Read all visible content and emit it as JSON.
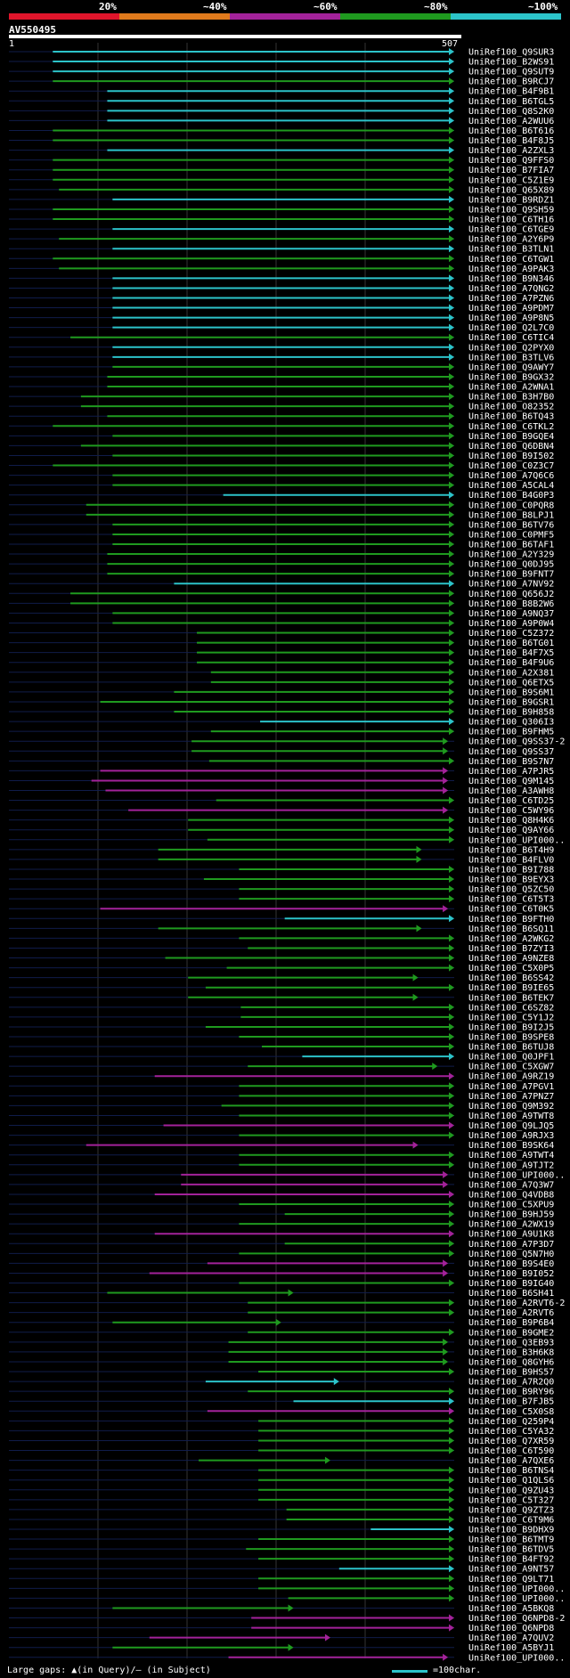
{
  "header": {
    "pct_labels": [
      "20%",
      "~40%",
      "~60%",
      "~80%",
      "~100%"
    ],
    "pct_colors": [
      "#e0152b",
      "#e07a1c",
      "#a3229a",
      "#1f9a1f",
      "#2cc3c9"
    ],
    "query_name": "AV550495",
    "ruler_start": "1",
    "ruler_end": "507"
  },
  "legend": {
    "gaps_text": "Large gaps: ▲(in Query)/– (in Subject)",
    "scale_text": "=100char."
  },
  "chart_data": {
    "type": "alignment-hits",
    "query_length": 507,
    "identity_colors": {
      "~80%": "#1f9a1f",
      "~100%": "#2cc3c9",
      "~60%": "#a3229a",
      "~40%": "#e07a1c",
      "20%": "#e0152b"
    },
    "hits": [
      {
        "id": "UniRef100_Q9SUR3",
        "start": 50,
        "end": 507,
        "cls": "~100%"
      },
      {
        "id": "UniRef100_B2WS91",
        "start": 50,
        "end": 507,
        "cls": "~100%"
      },
      {
        "id": "UniRef100_Q9SUT9",
        "start": 50,
        "end": 507,
        "cls": "~100%"
      },
      {
        "id": "UniRef100_B9RCJ7",
        "start": 50,
        "end": 507,
        "cls": "~80%"
      },
      {
        "id": "UniRef100_B4F9B1",
        "start": 112,
        "end": 507,
        "cls": "~100%"
      },
      {
        "id": "UniRef100_B6TGL5",
        "start": 112,
        "end": 507,
        "cls": "~100%"
      },
      {
        "id": "UniRef100_Q8S2K0",
        "start": 112,
        "end": 507,
        "cls": "~100%"
      },
      {
        "id": "UniRef100_A2WUU6",
        "start": 112,
        "end": 507,
        "cls": "~100%"
      },
      {
        "id": "UniRef100_B6T616",
        "start": 50,
        "end": 507,
        "cls": "~80%"
      },
      {
        "id": "UniRef100_B4F8J5",
        "start": 50,
        "end": 507,
        "cls": "~80%"
      },
      {
        "id": "UniRef100_A2ZXL3",
        "start": 112,
        "end": 507,
        "cls": "~100%"
      },
      {
        "id": "UniRef100_Q9FFS0",
        "start": 50,
        "end": 507,
        "cls": "~80%"
      },
      {
        "id": "UniRef100_B7FIA7",
        "start": 50,
        "end": 507,
        "cls": "~80%"
      },
      {
        "id": "UniRef100_C5Z1E9",
        "start": 50,
        "end": 507,
        "cls": "~80%"
      },
      {
        "id": "UniRef100_Q65X89",
        "start": 57,
        "end": 507,
        "cls": "~80%"
      },
      {
        "id": "UniRef100_B9RDZ1",
        "start": 118,
        "end": 507,
        "cls": "~100%"
      },
      {
        "id": "UniRef100_Q9SH59",
        "start": 50,
        "end": 507,
        "cls": "~80%"
      },
      {
        "id": "UniRef100_C6TH16",
        "start": 50,
        "end": 507,
        "cls": "~80%"
      },
      {
        "id": "UniRef100_C6TGE9",
        "start": 118,
        "end": 507,
        "cls": "~100%"
      },
      {
        "id": "UniRef100_A2Y6P9",
        "start": 57,
        "end": 507,
        "cls": "~80%"
      },
      {
        "id": "UniRef100_B3TLN1",
        "start": 118,
        "end": 507,
        "cls": "~100%"
      },
      {
        "id": "UniRef100_C6TGW1",
        "start": 50,
        "end": 507,
        "cls": "~80%"
      },
      {
        "id": "UniRef100_A9PAK3",
        "start": 57,
        "end": 507,
        "cls": "~80%"
      },
      {
        "id": "UniRef100_B9N346",
        "start": 118,
        "end": 507,
        "cls": "~100%"
      },
      {
        "id": "UniRef100_A7QNG2",
        "start": 118,
        "end": 507,
        "cls": "~100%"
      },
      {
        "id": "UniRef100_A7PZN6",
        "start": 118,
        "end": 507,
        "cls": "~100%"
      },
      {
        "id": "UniRef100_A9PDM7",
        "start": 118,
        "end": 507,
        "cls": "~100%"
      },
      {
        "id": "UniRef100_A9P8N5",
        "start": 118,
        "end": 507,
        "cls": "~100%"
      },
      {
        "id": "UniRef100_Q2L7C0",
        "start": 118,
        "end": 507,
        "cls": "~100%"
      },
      {
        "id": "UniRef100_C6TIC4",
        "start": 70,
        "end": 507,
        "cls": "~80%"
      },
      {
        "id": "UniRef100_Q2PYX0",
        "start": 118,
        "end": 507,
        "cls": "~100%"
      },
      {
        "id": "UniRef100_B3TLV6",
        "start": 118,
        "end": 507,
        "cls": "~100%"
      },
      {
        "id": "UniRef100_Q9AWY7",
        "start": 118,
        "end": 507,
        "cls": "~80%"
      },
      {
        "id": "UniRef100_B9GX32",
        "start": 112,
        "end": 507,
        "cls": "~80%"
      },
      {
        "id": "UniRef100_A2WNA1",
        "start": 112,
        "end": 507,
        "cls": "~80%"
      },
      {
        "id": "UniRef100_B3H7B0",
        "start": 82,
        "end": 507,
        "cls": "~80%"
      },
      {
        "id": "UniRef100_O82352",
        "start": 82,
        "end": 507,
        "cls": "~80%"
      },
      {
        "id": "UniRef100_B6TQ43",
        "start": 112,
        "end": 507,
        "cls": "~80%"
      },
      {
        "id": "UniRef100_C6TKL2",
        "start": 50,
        "end": 507,
        "cls": "~80%"
      },
      {
        "id": "UniRef100_B9GQE4",
        "start": 118,
        "end": 507,
        "cls": "~80%"
      },
      {
        "id": "UniRef100_Q6DBN4",
        "start": 82,
        "end": 507,
        "cls": "~80%"
      },
      {
        "id": "UniRef100_B9I502",
        "start": 118,
        "end": 507,
        "cls": "~80%"
      },
      {
        "id": "UniRef100_C0Z3C7",
        "start": 50,
        "end": 507,
        "cls": "~80%"
      },
      {
        "id": "UniRef100_A7Q6C6",
        "start": 118,
        "end": 507,
        "cls": "~80%"
      },
      {
        "id": "UniRef100_A5CAL4",
        "start": 118,
        "end": 507,
        "cls": "~80%"
      },
      {
        "id": "UniRef100_B4G0P3",
        "start": 244,
        "end": 507,
        "cls": "~100%"
      },
      {
        "id": "UniRef100_C0PQR8",
        "start": 88,
        "end": 507,
        "cls": "~80%"
      },
      {
        "id": "UniRef100_B8LPJ1",
        "start": 88,
        "end": 507,
        "cls": "~80%"
      },
      {
        "id": "UniRef100_B6TV76",
        "start": 118,
        "end": 507,
        "cls": "~80%"
      },
      {
        "id": "UniRef100_C0PMF5",
        "start": 118,
        "end": 507,
        "cls": "~80%"
      },
      {
        "id": "UniRef100_B6TAF1",
        "start": 118,
        "end": 507,
        "cls": "~80%"
      },
      {
        "id": "UniRef100_A2Y329",
        "start": 112,
        "end": 507,
        "cls": "~80%"
      },
      {
        "id": "UniRef100_Q0DJ95",
        "start": 112,
        "end": 507,
        "cls": "~80%"
      },
      {
        "id": "UniRef100_B9FNT7",
        "start": 112,
        "end": 507,
        "cls": "~80%"
      },
      {
        "id": "UniRef100_A7NV92",
        "start": 188,
        "end": 507,
        "cls": "~100%"
      },
      {
        "id": "UniRef100_Q656J2",
        "start": 70,
        "end": 507,
        "cls": "~80%"
      },
      {
        "id": "UniRef100_B8B2W6",
        "start": 70,
        "end": 507,
        "cls": "~80%"
      },
      {
        "id": "UniRef100_A9NQ37",
        "start": 118,
        "end": 507,
        "cls": "~80%"
      },
      {
        "id": "UniRef100_A9P0W4",
        "start": 118,
        "end": 507,
        "cls": "~80%"
      },
      {
        "id": "UniRef100_C5Z372",
        "start": 214,
        "end": 507,
        "cls": "~80%"
      },
      {
        "id": "UniRef100_B6TG01",
        "start": 214,
        "end": 507,
        "cls": "~80%"
      },
      {
        "id": "UniRef100_B4F7X5",
        "start": 214,
        "end": 507,
        "cls": "~80%"
      },
      {
        "id": "UniRef100_B4F9U6",
        "start": 214,
        "end": 507,
        "cls": "~80%"
      },
      {
        "id": "UniRef100_A2X381",
        "start": 230,
        "end": 507,
        "cls": "~80%"
      },
      {
        "id": "UniRef100_Q6ETX5",
        "start": 230,
        "end": 507,
        "cls": "~80%"
      },
      {
        "id": "UniRef100_B9S6M1",
        "start": 188,
        "end": 507,
        "cls": "~80%"
      },
      {
        "id": "UniRef100_B9GSR1",
        "start": 104,
        "end": 507,
        "cls": "~80%"
      },
      {
        "id": "UniRef100_B9H858",
        "start": 188,
        "end": 507,
        "cls": "~80%"
      },
      {
        "id": "UniRef100_Q306I3",
        "start": 286,
        "end": 507,
        "cls": "~100%"
      },
      {
        "id": "UniRef100_B9FHM5",
        "start": 230,
        "end": 507,
        "cls": "~80%"
      },
      {
        "id": "UniRef100_Q9SS37-2",
        "start": 208,
        "end": 500,
        "cls": "~80%"
      },
      {
        "id": "UniRef100_Q9SS37",
        "start": 208,
        "end": 500,
        "cls": "~80%"
      },
      {
        "id": "UniRef100_B9S7N7",
        "start": 228,
        "end": 507,
        "cls": "~80%"
      },
      {
        "id": "UniRef100_A7PJR5",
        "start": 104,
        "end": 500,
        "cls": "~60%"
      },
      {
        "id": "UniRef100_Q9M145",
        "start": 94,
        "end": 500,
        "cls": "~60%"
      },
      {
        "id": "UniRef100_A3AWH8",
        "start": 110,
        "end": 500,
        "cls": "~60%"
      },
      {
        "id": "UniRef100_C6TD25",
        "start": 236,
        "end": 507,
        "cls": "~80%"
      },
      {
        "id": "UniRef100_C5WY96",
        "start": 136,
        "end": 500,
        "cls": "~60%"
      },
      {
        "id": "UniRef100_Q8H4K6",
        "start": 204,
        "end": 507,
        "cls": "~80%"
      },
      {
        "id": "UniRef100_Q9AY66",
        "start": 204,
        "end": 507,
        "cls": "~80%"
      },
      {
        "id": "UniRef100_UPI000..",
        "start": 226,
        "end": 507,
        "cls": "~80%"
      },
      {
        "id": "UniRef100_B6T4H9",
        "start": 170,
        "end": 470,
        "cls": "~80%"
      },
      {
        "id": "UniRef100_B4FLV0",
        "start": 170,
        "end": 470,
        "cls": "~80%"
      },
      {
        "id": "UniRef100_B9I788",
        "start": 262,
        "end": 507,
        "cls": "~80%"
      },
      {
        "id": "UniRef100_B9EYX3",
        "start": 222,
        "end": 507,
        "cls": "~80%"
      },
      {
        "id": "UniRef100_Q5ZC50",
        "start": 262,
        "end": 507,
        "cls": "~80%"
      },
      {
        "id": "UniRef100_C6T5T3",
        "start": 262,
        "end": 507,
        "cls": "~80%"
      },
      {
        "id": "UniRef100_C6T0K5",
        "start": 104,
        "end": 500,
        "cls": "~60%"
      },
      {
        "id": "UniRef100_B9FTH0",
        "start": 314,
        "end": 507,
        "cls": "~100%"
      },
      {
        "id": "UniRef100_B6SQ11",
        "start": 170,
        "end": 470,
        "cls": "~80%"
      },
      {
        "id": "UniRef100_A2WKG2",
        "start": 262,
        "end": 507,
        "cls": "~80%"
      },
      {
        "id": "UniRef100_B7ZYI3",
        "start": 272,
        "end": 507,
        "cls": "~80%"
      },
      {
        "id": "UniRef100_A9NZE8",
        "start": 178,
        "end": 507,
        "cls": "~80%"
      },
      {
        "id": "UniRef100_C5X0P5",
        "start": 248,
        "end": 507,
        "cls": "~80%"
      },
      {
        "id": "UniRef100_B6SS42",
        "start": 204,
        "end": 466,
        "cls": "~80%"
      },
      {
        "id": "UniRef100_B9IE65",
        "start": 224,
        "end": 507,
        "cls": "~80%"
      },
      {
        "id": "UniRef100_B6TEK7",
        "start": 204,
        "end": 466,
        "cls": "~80%"
      },
      {
        "id": "UniRef100_C6SZ82",
        "start": 264,
        "end": 507,
        "cls": "~80%"
      },
      {
        "id": "UniRef100_C5Y1J2",
        "start": 264,
        "end": 507,
        "cls": "~80%"
      },
      {
        "id": "UniRef100_B9I2J5",
        "start": 224,
        "end": 507,
        "cls": "~80%"
      },
      {
        "id": "UniRef100_B9SPE8",
        "start": 262,
        "end": 507,
        "cls": "~80%"
      },
      {
        "id": "UniRef100_B6TUJ8",
        "start": 288,
        "end": 507,
        "cls": "~80%"
      },
      {
        "id": "UniRef100_Q0JPF1",
        "start": 334,
        "end": 507,
        "cls": "~100%"
      },
      {
        "id": "UniRef100_C5XGW7",
        "start": 272,
        "end": 488,
        "cls": "~80%"
      },
      {
        "id": "UniRef100_A9RZ19",
        "start": 166,
        "end": 507,
        "cls": "~60%"
      },
      {
        "id": "UniRef100_A7PGV1",
        "start": 262,
        "end": 507,
        "cls": "~80%"
      },
      {
        "id": "UniRef100_A7PNZ7",
        "start": 262,
        "end": 507,
        "cls": "~80%"
      },
      {
        "id": "UniRef100_Q9M392",
        "start": 242,
        "end": 507,
        "cls": "~80%"
      },
      {
        "id": "UniRef100_A9TWT8",
        "start": 262,
        "end": 507,
        "cls": "~80%"
      },
      {
        "id": "UniRef100_Q9LJQ5",
        "start": 176,
        "end": 507,
        "cls": "~60%"
      },
      {
        "id": "UniRef100_A9RJX3",
        "start": 262,
        "end": 507,
        "cls": "~80%"
      },
      {
        "id": "UniRef100_B9SK64",
        "start": 88,
        "end": 466,
        "cls": "~60%"
      },
      {
        "id": "UniRef100_A9TWT4",
        "start": 262,
        "end": 507,
        "cls": "~80%"
      },
      {
        "id": "UniRef100_A9TJT2",
        "start": 262,
        "end": 507,
        "cls": "~80%"
      },
      {
        "id": "UniRef100_UPI000..",
        "start": 196,
        "end": 500,
        "cls": "~60%"
      },
      {
        "id": "UniRef100_A7Q3W7",
        "start": 196,
        "end": 500,
        "cls": "~60%"
      },
      {
        "id": "UniRef100_Q4VDB8",
        "start": 166,
        "end": 507,
        "cls": "~60%"
      },
      {
        "id": "UniRef100_C5XPU9",
        "start": 262,
        "end": 507,
        "cls": "~80%"
      },
      {
        "id": "UniRef100_B9HJ59",
        "start": 314,
        "end": 507,
        "cls": "~80%"
      },
      {
        "id": "UniRef100_A2WX19",
        "start": 262,
        "end": 507,
        "cls": "~80%"
      },
      {
        "id": "UniRef100_A9U1K8",
        "start": 166,
        "end": 507,
        "cls": "~60%"
      },
      {
        "id": "UniRef100_A7P3D7",
        "start": 314,
        "end": 507,
        "cls": "~80%"
      },
      {
        "id": "UniRef100_Q5N7H0",
        "start": 262,
        "end": 507,
        "cls": "~80%"
      },
      {
        "id": "UniRef100_B9S4E0",
        "start": 226,
        "end": 500,
        "cls": "~60%"
      },
      {
        "id": "UniRef100_B9I052",
        "start": 160,
        "end": 500,
        "cls": "~60%"
      },
      {
        "id": "UniRef100_B9IG40",
        "start": 262,
        "end": 507,
        "cls": "~80%"
      },
      {
        "id": "UniRef100_B6SH41",
        "start": 112,
        "end": 324,
        "cls": "~80%"
      },
      {
        "id": "UniRef100_A2RVT6-2",
        "start": 272,
        "end": 507,
        "cls": "~80%"
      },
      {
        "id": "UniRef100_A2RVT6",
        "start": 272,
        "end": 507,
        "cls": "~80%"
      },
      {
        "id": "UniRef100_B9P6B4",
        "start": 118,
        "end": 310,
        "cls": "~80%"
      },
      {
        "id": "UniRef100_B9GME2",
        "start": 272,
        "end": 507,
        "cls": "~80%"
      },
      {
        "id": "UniRef100_Q3EB93",
        "start": 250,
        "end": 500,
        "cls": "~80%"
      },
      {
        "id": "UniRef100_B3H6K8",
        "start": 250,
        "end": 500,
        "cls": "~80%"
      },
      {
        "id": "UniRef100_Q8GYH6",
        "start": 250,
        "end": 500,
        "cls": "~80%"
      },
      {
        "id": "UniRef100_B9HS57",
        "start": 284,
        "end": 507,
        "cls": "~80%"
      },
      {
        "id": "UniRef100_A7R2Q0",
        "start": 224,
        "end": 376,
        "cls": "~100%"
      },
      {
        "id": "UniRef100_B9RY96",
        "start": 272,
        "end": 507,
        "cls": "~80%"
      },
      {
        "id": "UniRef100_B7FJB5",
        "start": 324,
        "end": 507,
        "cls": "~100%"
      },
      {
        "id": "UniRef100_C5X0S8",
        "start": 226,
        "end": 507,
        "cls": "~60%"
      },
      {
        "id": "UniRef100_Q259P4",
        "start": 284,
        "end": 507,
        "cls": "~80%"
      },
      {
        "id": "UniRef100_C5YA32",
        "start": 284,
        "end": 507,
        "cls": "~80%"
      },
      {
        "id": "UniRef100_Q7XR59",
        "start": 284,
        "end": 507,
        "cls": "~80%"
      },
      {
        "id": "UniRef100_C6T590",
        "start": 284,
        "end": 507,
        "cls": "~80%"
      },
      {
        "id": "UniRef100_A7QXE6",
        "start": 216,
        "end": 366,
        "cls": "~80%"
      },
      {
        "id": "UniRef100_B6TNS4",
        "start": 284,
        "end": 507,
        "cls": "~80%"
      },
      {
        "id": "UniRef100_Q1QLS6",
        "start": 284,
        "end": 507,
        "cls": "~80%"
      },
      {
        "id": "UniRef100_Q9ZU43",
        "start": 284,
        "end": 507,
        "cls": "~80%"
      },
      {
        "id": "UniRef100_C5T327",
        "start": 284,
        "end": 507,
        "cls": "~80%"
      },
      {
        "id": "UniRef100_Q9ZTZ3",
        "start": 316,
        "end": 507,
        "cls": "~80%"
      },
      {
        "id": "UniRef100_C6T9M6",
        "start": 316,
        "end": 507,
        "cls": "~80%"
      },
      {
        "id": "UniRef100_B9DHX9",
        "start": 412,
        "end": 507,
        "cls": "~100%"
      },
      {
        "id": "UniRef100_B6TMT9",
        "start": 284,
        "end": 507,
        "cls": "~80%"
      },
      {
        "id": "UniRef100_B6TDV5",
        "start": 270,
        "end": 507,
        "cls": "~80%"
      },
      {
        "id": "UniRef100_B4FT92",
        "start": 284,
        "end": 507,
        "cls": "~80%"
      },
      {
        "id": "UniRef100_A9NT57",
        "start": 376,
        "end": 507,
        "cls": "~100%"
      },
      {
        "id": "UniRef100_Q9LT71",
        "start": 284,
        "end": 507,
        "cls": "~80%"
      },
      {
        "id": "UniRef100_UPI000..",
        "start": 284,
        "end": 507,
        "cls": "~80%"
      },
      {
        "id": "UniRef100_UPI000..",
        "start": 318,
        "end": 507,
        "cls": "~80%"
      },
      {
        "id": "UniRef100_A5BKQ8",
        "start": 118,
        "end": 324,
        "cls": "~80%"
      },
      {
        "id": "UniRef100_Q6NPD8-2",
        "start": 276,
        "end": 507,
        "cls": "~60%"
      },
      {
        "id": "UniRef100_Q6NPD8",
        "start": 276,
        "end": 507,
        "cls": "~60%"
      },
      {
        "id": "UniRef100_A7QUV2",
        "start": 160,
        "end": 366,
        "cls": "~60%"
      },
      {
        "id": "UniRef100_A5BYJ1",
        "start": 118,
        "end": 324,
        "cls": "~80%"
      },
      {
        "id": "UniRef100_UPI000..",
        "start": 250,
        "end": 500,
        "cls": "~60%"
      }
    ]
  }
}
